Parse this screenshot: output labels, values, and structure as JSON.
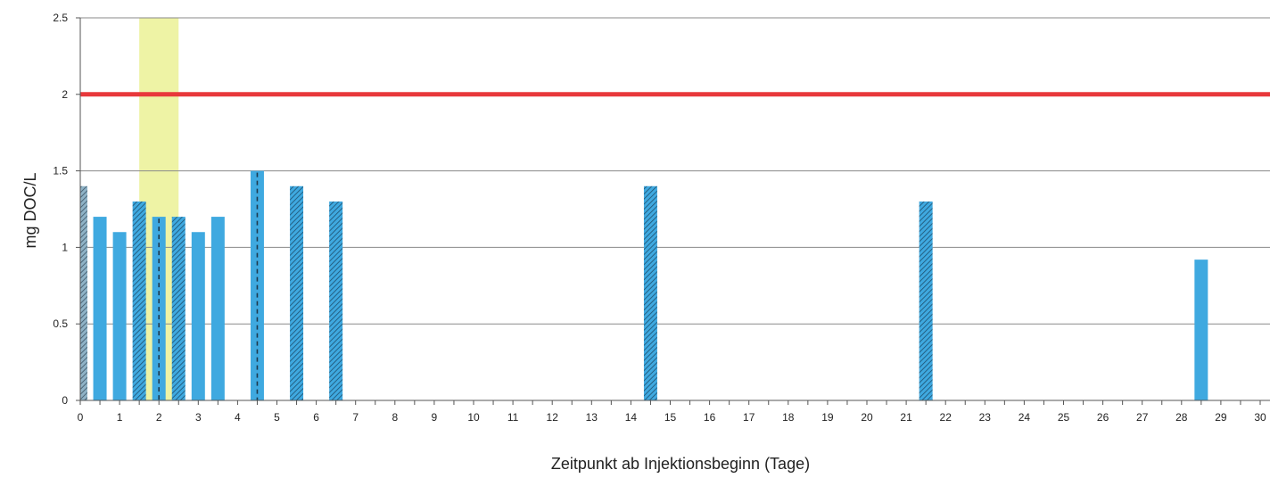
{
  "chart_data": {
    "type": "bar",
    "title": "",
    "xlabel": "Zeitpunkt ab Injektionsbeginn (Tage)",
    "ylabel": "mg DOC/L",
    "xlim": [
      0,
      30
    ],
    "ylim": [
      0,
      2.5
    ],
    "yticks": [
      "0",
      "0.5",
      "1",
      "1.5",
      "2",
      "2.5"
    ],
    "xticks": [
      "0",
      "1",
      "2",
      "3",
      "4",
      "5",
      "6",
      "7",
      "8",
      "9",
      "10",
      "11",
      "12",
      "13",
      "14",
      "15",
      "16",
      "17",
      "18",
      "19",
      "20",
      "21",
      "22",
      "23",
      "24",
      "25",
      "26",
      "27",
      "28",
      "29",
      "30"
    ],
    "grid": true,
    "legend": "none",
    "threshold": {
      "value": 2,
      "color": "#e8383b"
    },
    "highlight_band": {
      "x_start": 1.5,
      "x_end": 2.5,
      "color": "#eef3a5"
    },
    "colors": {
      "bar": "#3fa9e0",
      "bar_hatch": "#1d4f6e",
      "grid": "#8a8a8a",
      "axis": "#555555"
    },
    "bars": [
      {
        "x": 0.1,
        "value": 1.4,
        "style": "hatched-grey"
      },
      {
        "x": 0.5,
        "value": 1.2,
        "style": "solid"
      },
      {
        "x": 1.0,
        "value": 1.1,
        "style": "solid"
      },
      {
        "x": 1.5,
        "value": 1.3,
        "style": "hatched"
      },
      {
        "x": 2.0,
        "value": 1.2,
        "style": "dashed"
      },
      {
        "x": 2.5,
        "value": 1.2,
        "style": "hatched"
      },
      {
        "x": 3.0,
        "value": 1.1,
        "style": "solid"
      },
      {
        "x": 3.5,
        "value": 1.2,
        "style": "solid"
      },
      {
        "x": 4.5,
        "value": 1.5,
        "style": "dashed"
      },
      {
        "x": 5.5,
        "value": 1.4,
        "style": "hatched"
      },
      {
        "x": 6.5,
        "value": 1.3,
        "style": "hatched"
      },
      {
        "x": 14.5,
        "value": 1.4,
        "style": "hatched"
      },
      {
        "x": 21.5,
        "value": 1.3,
        "style": "hatched"
      },
      {
        "x": 28.5,
        "value": 0.92,
        "style": "solid"
      }
    ]
  }
}
